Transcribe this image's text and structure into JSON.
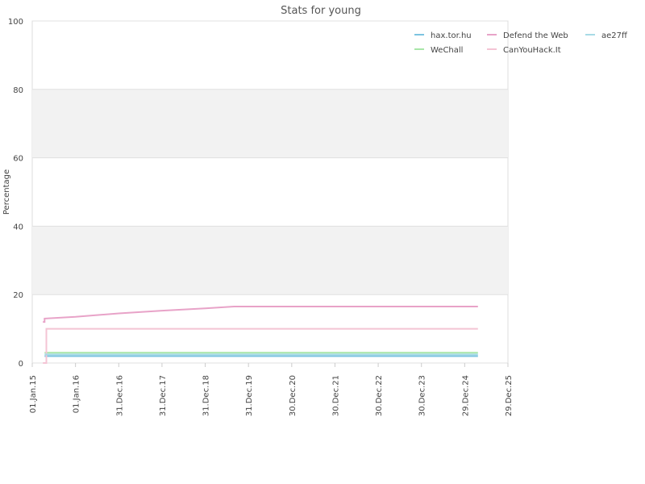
{
  "chart_data": {
    "type": "line",
    "title": "Stats for young",
    "ylabel": "Percentage",
    "xlabel": "",
    "ylim": [
      0,
      100
    ],
    "yticks": [
      0,
      20,
      40,
      60,
      80,
      100
    ],
    "xlim": [
      "2015-01-01",
      "2025-12-29"
    ],
    "xticks": [
      {
        "date": "2015-01-01",
        "label": "01.Jan.15"
      },
      {
        "date": "2016-01-01",
        "label": "01.Jan.16"
      },
      {
        "date": "2016-12-31",
        "label": "31.Dec.16"
      },
      {
        "date": "2017-12-31",
        "label": "31.Dec.17"
      },
      {
        "date": "2018-12-31",
        "label": "31.Dec.18"
      },
      {
        "date": "2019-12-31",
        "label": "31.Dec.19"
      },
      {
        "date": "2020-12-30",
        "label": "30.Dec.20"
      },
      {
        "date": "2021-12-30",
        "label": "30.Dec.21"
      },
      {
        "date": "2022-12-30",
        "label": "30.Dec.22"
      },
      {
        "date": "2023-12-30",
        "label": "30.Dec.23"
      },
      {
        "date": "2024-12-29",
        "label": "29.Dec.24"
      },
      {
        "date": "2025-12-29",
        "label": "29.Dec.25"
      }
    ],
    "bands": [
      [
        20,
        40
      ],
      [
        60,
        80
      ]
    ],
    "legend_position": "top-right",
    "series": [
      {
        "name": "hax.tor.hu",
        "color": "#7cc4e0",
        "points": [
          [
            "2015-04-15",
            2
          ],
          [
            "2025-04-20",
            2
          ]
        ]
      },
      {
        "name": "WeChall",
        "color": "#a8e6a8",
        "points": [
          [
            "2015-04-15",
            3
          ],
          [
            "2025-04-20",
            3
          ]
        ]
      },
      {
        "name": "Defend the Web",
        "color": "#e8a3c8",
        "points": [
          [
            "2015-04-01",
            12
          ],
          [
            "2015-04-15",
            12
          ],
          [
            "2015-04-15",
            13
          ],
          [
            "2016-01-01",
            13.5
          ],
          [
            "2017-01-01",
            14.5
          ],
          [
            "2018-01-01",
            15.3
          ],
          [
            "2019-01-01",
            16
          ],
          [
            "2019-09-01",
            16.5
          ],
          [
            "2025-04-20",
            16.5
          ]
        ]
      },
      {
        "name": "CanYouHack.It",
        "color": "#f4c4d4",
        "points": [
          [
            "2015-04-01",
            0
          ],
          [
            "2015-04-30",
            0
          ],
          [
            "2015-04-30",
            10
          ],
          [
            "2025-04-20",
            10
          ]
        ]
      },
      {
        "name": "ae27ff",
        "color": "#a8dbe6",
        "points": [
          [
            "2015-04-15",
            2.5
          ],
          [
            "2025-04-20",
            2.5
          ]
        ]
      }
    ]
  }
}
